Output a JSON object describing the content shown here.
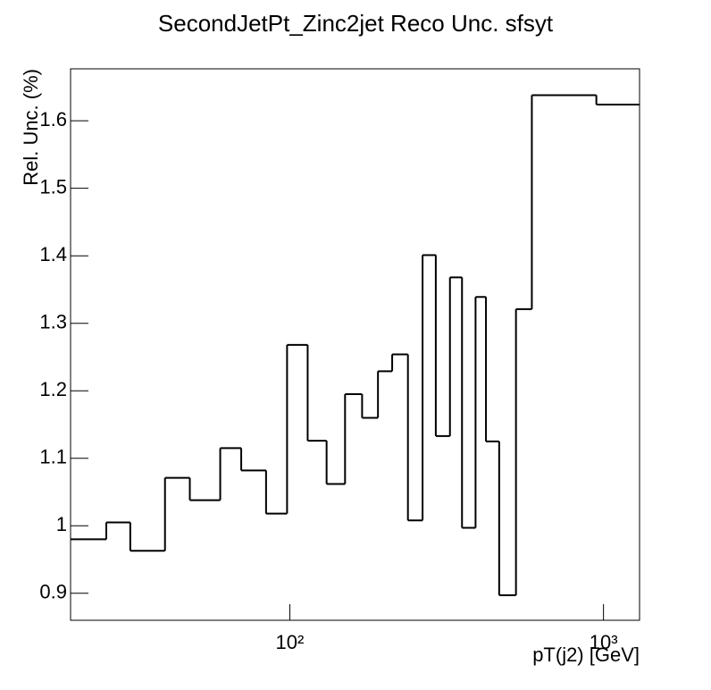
{
  "chart_data": {
    "type": "histogram",
    "title": "SecondJetPt_Zinc2jet Reco Unc. sfsyt",
    "x_label": "pT(j2) [GeV]",
    "y_label": "Rel. Unc. (%)",
    "xscale": "log",
    "color": "#000000",
    "bins": [
      20,
      26,
      31,
      40,
      48,
      60,
      70,
      84,
      98,
      114,
      131,
      150,
      170,
      191,
      212,
      238,
      265,
      292,
      324,
      354,
      391,
      422,
      465,
      526,
      591,
      949,
      1303
    ],
    "values": [
      0.98,
      1.005,
      0.963,
      1.071,
      1.038,
      1.115,
      1.082,
      1.018,
      1.268,
      1.126,
      1.062,
      1.195,
      1.16,
      1.229,
      1.254,
      1.008,
      1.401,
      1.133,
      1.368,
      0.997,
      1.339,
      1.125,
      0.897,
      1.321,
      1.638,
      1.624
    ],
    "xlim": [
      20,
      1303
    ],
    "ylim": [
      0.86,
      1.677
    ],
    "xticks": [
      {
        "value": 100,
        "label": "10²"
      },
      {
        "value": 1000,
        "label": "10³"
      }
    ],
    "yticks": [
      0.9,
      1,
      1.1,
      1.2,
      1.3,
      1.4,
      1.5,
      1.6
    ]
  }
}
